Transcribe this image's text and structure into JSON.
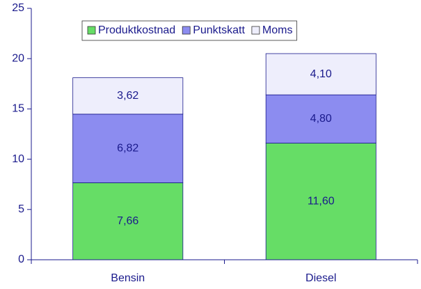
{
  "chart_data": {
    "type": "stacked_bar",
    "categories": [
      "Bensin",
      "Diesel"
    ],
    "series": [
      {
        "name": "Produktkostnad",
        "color": "#66dd66",
        "values": [
          7.66,
          11.6
        ],
        "value_labels": [
          "7,66",
          "11,60"
        ]
      },
      {
        "name": "Punktskatt",
        "color": "#8c8cf0",
        "values": [
          6.82,
          4.8
        ],
        "value_labels": [
          "6,82",
          "4,80"
        ]
      },
      {
        "name": "Moms",
        "color": "#eeeefc",
        "values": [
          3.62,
          4.1
        ],
        "value_labels": [
          "3,62",
          "4,10"
        ]
      }
    ],
    "ylim": [
      0,
      25
    ],
    "yticks": [
      0,
      5,
      10,
      15,
      20,
      25
    ],
    "grid": false,
    "legend": "upper center"
  }
}
